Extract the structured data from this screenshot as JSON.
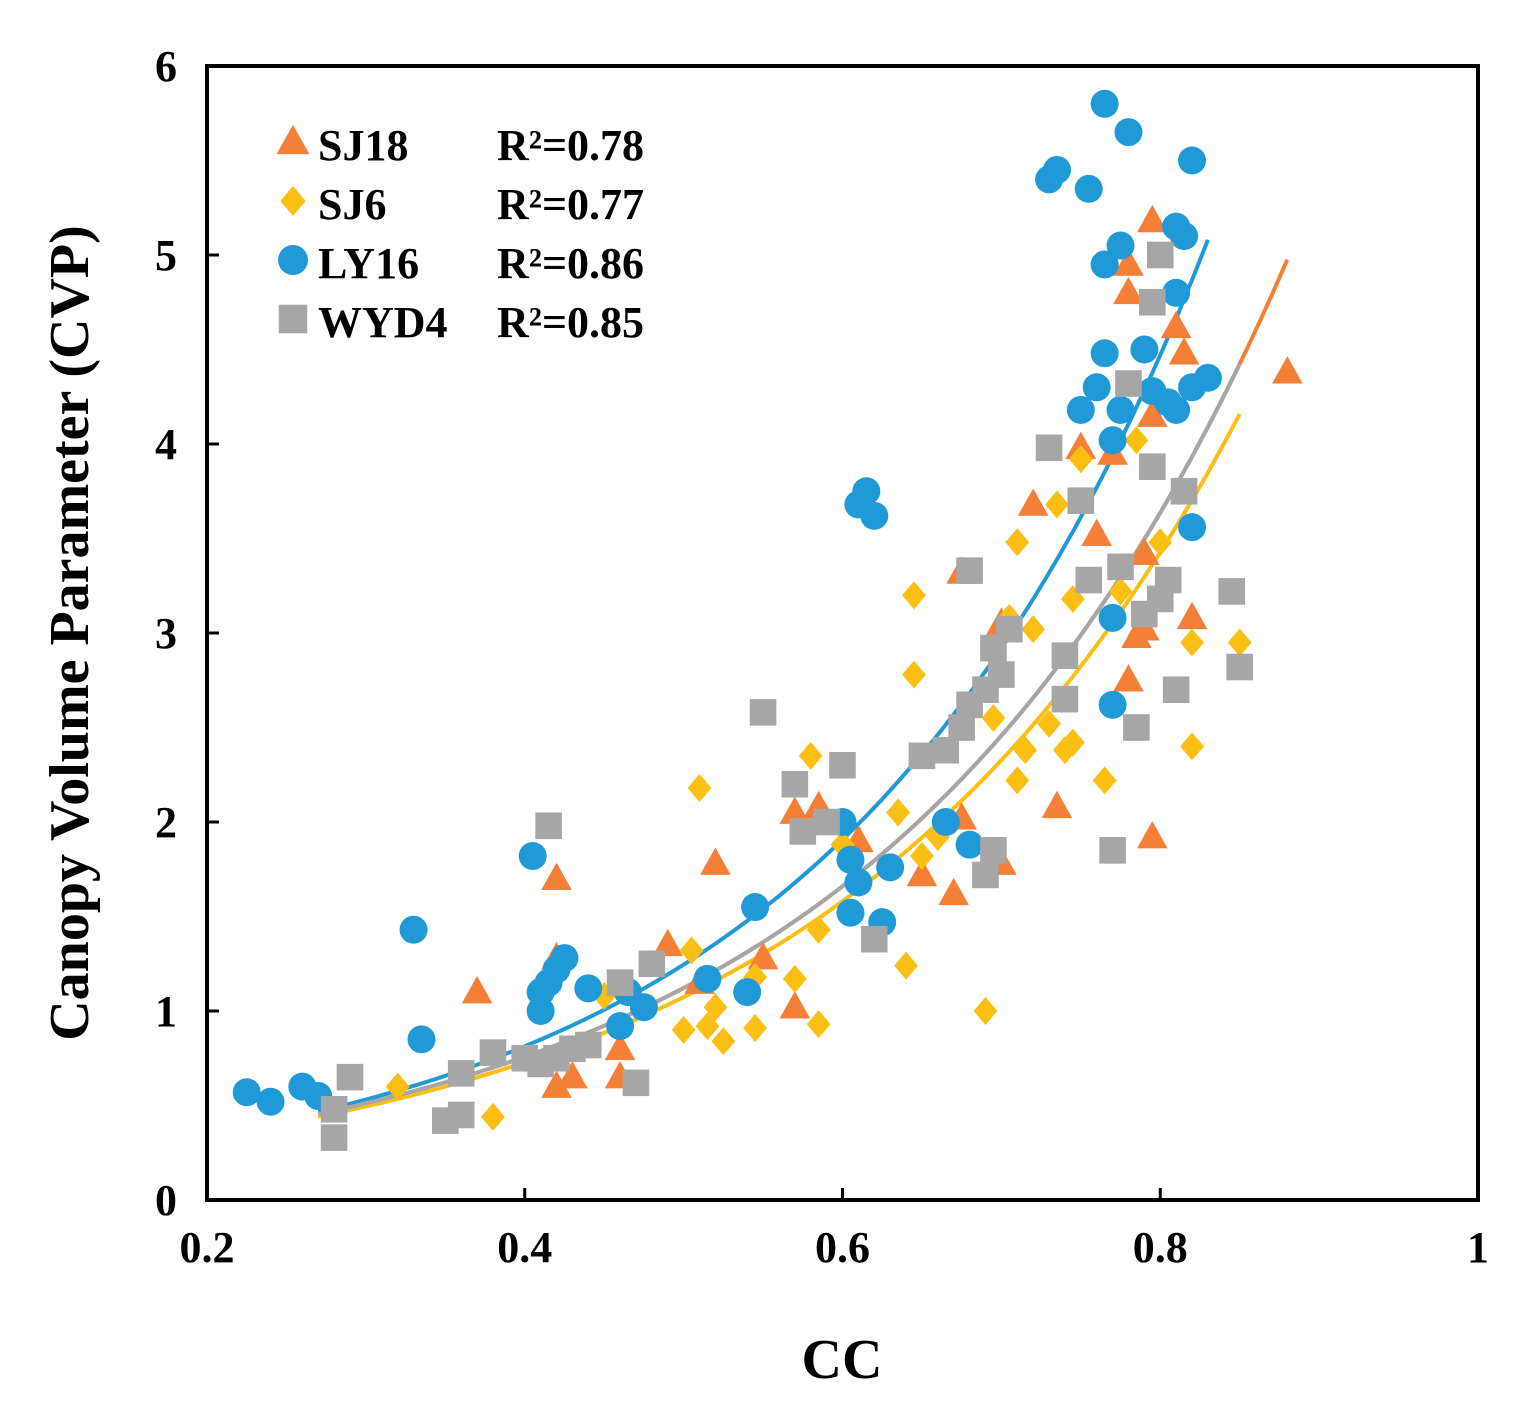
{
  "chart_data": {
    "type": "scatter",
    "title": "",
    "xlabel": "CC",
    "ylabel": "Canopy Volume Parameter (CVP)",
    "xlim": [
      0.2,
      1.0
    ],
    "ylim": [
      0,
      6
    ],
    "xticks": [
      "0.2",
      "0.4",
      "0.6",
      "0.8",
      "1"
    ],
    "xtick_values": [
      0.2,
      0.4,
      0.6,
      0.8,
      1.0
    ],
    "yticks": [
      "0",
      "1",
      "2",
      "3",
      "4",
      "5",
      "6"
    ],
    "ytick_values": [
      0,
      1,
      2,
      3,
      4,
      5,
      6
    ],
    "grid": false,
    "legend_position": "top-left",
    "series": [
      {
        "name": "SJ18",
        "r2_label": "R²=0.78",
        "marker": "triangle",
        "color": "#F47F36",
        "fit": {
          "x_range": [
            0.37,
            0.88
          ],
          "a": 0.158,
          "b": 3.92
        },
        "points": [
          [
            0.37,
            1.1
          ],
          [
            0.42,
            1.7
          ],
          [
            0.42,
            1.28
          ],
          [
            0.42,
            0.6
          ],
          [
            0.43,
            0.65
          ],
          [
            0.46,
            0.8
          ],
          [
            0.46,
            0.65
          ],
          [
            0.49,
            1.35
          ],
          [
            0.51,
            1.15
          ],
          [
            0.52,
            1.78
          ],
          [
            0.55,
            1.28
          ],
          [
            0.57,
            1.02
          ],
          [
            0.57,
            2.05
          ],
          [
            0.585,
            2.08
          ],
          [
            0.61,
            1.9
          ],
          [
            0.65,
            1.72
          ],
          [
            0.67,
            1.62
          ],
          [
            0.675,
            2.02
          ],
          [
            0.675,
            3.32
          ],
          [
            0.7,
            1.78
          ],
          [
            0.7,
            3.05
          ],
          [
            0.72,
            3.68
          ],
          [
            0.735,
            2.08
          ],
          [
            0.75,
            3.98
          ],
          [
            0.76,
            3.52
          ],
          [
            0.77,
            3.95
          ],
          [
            0.78,
            2.75
          ],
          [
            0.78,
            4.95
          ],
          [
            0.78,
            4.8
          ],
          [
            0.785,
            2.98
          ],
          [
            0.79,
            3.02
          ],
          [
            0.79,
            3.42
          ],
          [
            0.795,
            4.15
          ],
          [
            0.795,
            5.18
          ],
          [
            0.795,
            1.92
          ],
          [
            0.81,
            4.62
          ],
          [
            0.815,
            4.48
          ],
          [
            0.82,
            3.08
          ],
          [
            0.88,
            4.38
          ]
        ]
      },
      {
        "name": "SJ6",
        "r2_label": "R²=0.77",
        "marker": "diamond",
        "color": "#FBBF14",
        "fit": {
          "x_range": [
            0.27,
            0.85
          ],
          "a": 0.155,
          "b": 3.87
        },
        "points": [
          [
            0.32,
            0.6
          ],
          [
            0.38,
            0.44
          ],
          [
            0.45,
            1.08
          ],
          [
            0.5,
            0.9
          ],
          [
            0.505,
            1.32
          ],
          [
            0.51,
            2.18
          ],
          [
            0.515,
            0.92
          ],
          [
            0.52,
            1.02
          ],
          [
            0.525,
            0.84
          ],
          [
            0.545,
            0.91
          ],
          [
            0.545,
            1.18
          ],
          [
            0.57,
            1.17
          ],
          [
            0.58,
            2.35
          ],
          [
            0.585,
            0.93
          ],
          [
            0.585,
            1.43
          ],
          [
            0.6,
            1.88
          ],
          [
            0.635,
            2.05
          ],
          [
            0.64,
            1.24
          ],
          [
            0.645,
            2.78
          ],
          [
            0.645,
            3.2
          ],
          [
            0.65,
            1.82
          ],
          [
            0.66,
            1.92
          ],
          [
            0.69,
            1.0
          ],
          [
            0.695,
            2.55
          ],
          [
            0.705,
            3.08
          ],
          [
            0.71,
            3.48
          ],
          [
            0.71,
            2.22
          ],
          [
            0.715,
            2.38
          ],
          [
            0.72,
            3.02
          ],
          [
            0.73,
            2.52
          ],
          [
            0.735,
            3.68
          ],
          [
            0.74,
            2.38
          ],
          [
            0.745,
            2.42
          ],
          [
            0.745,
            3.18
          ],
          [
            0.75,
            3.92
          ],
          [
            0.765,
            2.22
          ],
          [
            0.775,
            3.22
          ],
          [
            0.785,
            4.02
          ],
          [
            0.8,
            3.48
          ],
          [
            0.82,
            2.4
          ],
          [
            0.82,
            2.95
          ],
          [
            0.85,
            2.95
          ]
        ]
      },
      {
        "name": "LY16",
        "r2_label": "R²=0.86",
        "marker": "circle",
        "color": "#1F9AD6",
        "fit": {
          "x_range": [
            0.27,
            0.83
          ],
          "a": 0.148,
          "b": 4.26
        },
        "points": [
          [
            0.225,
            0.57
          ],
          [
            0.24,
            0.52
          ],
          [
            0.26,
            0.6
          ],
          [
            0.27,
            0.55
          ],
          [
            0.33,
            1.43
          ],
          [
            0.335,
            0.85
          ],
          [
            0.405,
            1.82
          ],
          [
            0.41,
            1.1
          ],
          [
            0.41,
            1.0
          ],
          [
            0.415,
            1.15
          ],
          [
            0.42,
            1.22
          ],
          [
            0.425,
            1.28
          ],
          [
            0.44,
            1.12
          ],
          [
            0.46,
            0.92
          ],
          [
            0.465,
            1.1
          ],
          [
            0.475,
            1.02
          ],
          [
            0.515,
            1.17
          ],
          [
            0.54,
            1.1
          ],
          [
            0.545,
            1.55
          ],
          [
            0.6,
            2.0
          ],
          [
            0.605,
            1.8
          ],
          [
            0.605,
            1.52
          ],
          [
            0.61,
            1.68
          ],
          [
            0.61,
            3.68
          ],
          [
            0.615,
            3.75
          ],
          [
            0.62,
            3.62
          ],
          [
            0.625,
            1.47
          ],
          [
            0.63,
            1.76
          ],
          [
            0.665,
            2.0
          ],
          [
            0.68,
            1.88
          ],
          [
            0.73,
            5.4
          ],
          [
            0.735,
            5.45
          ],
          [
            0.75,
            4.18
          ],
          [
            0.755,
            5.35
          ],
          [
            0.76,
            4.3
          ],
          [
            0.765,
            4.48
          ],
          [
            0.765,
            4.95
          ],
          [
            0.765,
            5.8
          ],
          [
            0.77,
            3.08
          ],
          [
            0.77,
            2.62
          ],
          [
            0.77,
            4.02
          ],
          [
            0.775,
            4.18
          ],
          [
            0.775,
            5.05
          ],
          [
            0.78,
            5.65
          ],
          [
            0.79,
            4.5
          ],
          [
            0.795,
            4.28
          ],
          [
            0.805,
            4.22
          ],
          [
            0.81,
            4.18
          ],
          [
            0.81,
            4.8
          ],
          [
            0.81,
            5.15
          ],
          [
            0.815,
            5.1
          ],
          [
            0.82,
            5.5
          ],
          [
            0.82,
            4.3
          ],
          [
            0.82,
            3.56
          ],
          [
            0.83,
            4.35
          ]
        ]
      },
      {
        "name": "WYD4",
        "r2_label": "R²=0.85",
        "marker": "square",
        "color": "#A6A6A6",
        "fit": {
          "x_range": [
            0.27,
            0.85
          ],
          "a": 0.158,
          "b": 3.92
        },
        "points": [
          [
            0.28,
            0.33
          ],
          [
            0.28,
            0.48
          ],
          [
            0.29,
            0.65
          ],
          [
            0.35,
            0.42
          ],
          [
            0.36,
            0.45
          ],
          [
            0.36,
            0.67
          ],
          [
            0.38,
            0.78
          ],
          [
            0.4,
            0.75
          ],
          [
            0.41,
            0.72
          ],
          [
            0.415,
            1.98
          ],
          [
            0.42,
            0.75
          ],
          [
            0.43,
            0.8
          ],
          [
            0.44,
            0.82
          ],
          [
            0.46,
            1.15
          ],
          [
            0.47,
            0.62
          ],
          [
            0.48,
            1.25
          ],
          [
            0.55,
            2.58
          ],
          [
            0.57,
            2.2
          ],
          [
            0.575,
            1.95
          ],
          [
            0.59,
            2.0
          ],
          [
            0.6,
            2.3
          ],
          [
            0.62,
            1.38
          ],
          [
            0.65,
            2.35
          ],
          [
            0.665,
            2.38
          ],
          [
            0.675,
            2.5
          ],
          [
            0.68,
            3.33
          ],
          [
            0.68,
            2.62
          ],
          [
            0.69,
            1.72
          ],
          [
            0.69,
            2.7
          ],
          [
            0.695,
            1.85
          ],
          [
            0.695,
            2.92
          ],
          [
            0.7,
            2.78
          ],
          [
            0.705,
            3.02
          ],
          [
            0.73,
            3.98
          ],
          [
            0.74,
            2.88
          ],
          [
            0.74,
            2.65
          ],
          [
            0.75,
            3.7
          ],
          [
            0.755,
            3.28
          ],
          [
            0.77,
            1.85
          ],
          [
            0.775,
            3.35
          ],
          [
            0.78,
            4.32
          ],
          [
            0.785,
            2.5
          ],
          [
            0.79,
            3.1
          ],
          [
            0.795,
            3.88
          ],
          [
            0.795,
            4.75
          ],
          [
            0.8,
            3.18
          ],
          [
            0.8,
            5.0
          ],
          [
            0.805,
            3.28
          ],
          [
            0.81,
            2.7
          ],
          [
            0.815,
            3.75
          ],
          [
            0.845,
            3.22
          ],
          [
            0.85,
            2.82
          ]
        ]
      }
    ]
  }
}
